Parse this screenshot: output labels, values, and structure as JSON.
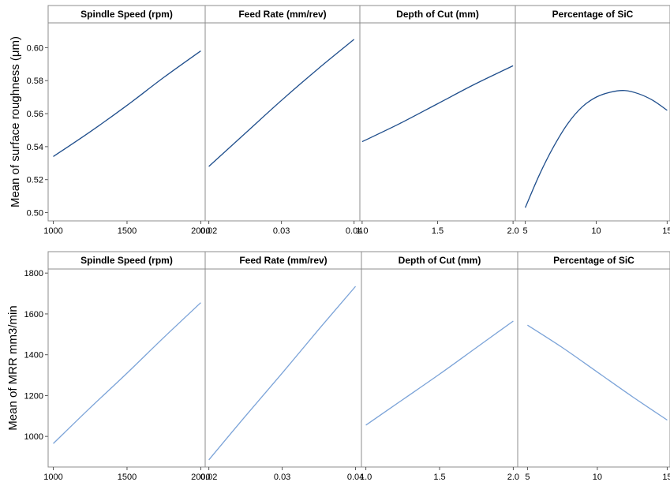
{
  "chart_data": [
    {
      "type": "line",
      "ylabel": "Mean of surface roughness (μm)",
      "ylim": [
        0.495,
        0.615
      ],
      "yticks": [
        0.5,
        0.52,
        0.54,
        0.56,
        0.58,
        0.6
      ],
      "ytick_labels": [
        "0.50",
        "0.52",
        "0.54",
        "0.56",
        "0.58",
        "0.60"
      ],
      "line_color": "#1f4e8c",
      "grid": false,
      "panels": [
        {
          "title": "Spindle Speed (rpm)",
          "xlim": [
            965,
            2030
          ],
          "xticks": [
            1000,
            1500,
            2000
          ],
          "xtick_labels": [
            "1000",
            "1500",
            "2000"
          ],
          "x": [
            1000,
            1250,
            1500,
            1750,
            2000
          ],
          "y": [
            0.534,
            0.549,
            0.565,
            0.582,
            0.598
          ]
        },
        {
          "title": "Feed Rate (mm/rev)",
          "xlim": [
            0.0195,
            0.0408
          ],
          "xticks": [
            0.02,
            0.03,
            0.04
          ],
          "xtick_labels": [
            "0.02",
            "0.03",
            "0.04"
          ],
          "x": [
            0.02,
            0.025,
            0.03,
            0.035,
            0.04
          ],
          "y": [
            0.528,
            0.548,
            0.568,
            0.587,
            0.605
          ]
        },
        {
          "title": "Depth of Cut (mm)",
          "xlim": [
            0.985,
            2.015
          ],
          "xticks": [
            1.0,
            1.5,
            2.0
          ],
          "xtick_labels": [
            "1.0",
            "1.5",
            "2.0"
          ],
          "x": [
            1.0,
            1.25,
            1.5,
            1.75,
            2.0
          ],
          "y": [
            0.543,
            0.554,
            0.566,
            0.578,
            0.589
          ]
        },
        {
          "title": "Percentage of SiC",
          "xlim": [
            4.3,
            15.2
          ],
          "xticks": [
            5,
            10,
            15
          ],
          "xtick_labels": [
            "5",
            "10",
            "15"
          ],
          "x": [
            5,
            6,
            7,
            8,
            9,
            10,
            11,
            12,
            13,
            14,
            15
          ],
          "y": [
            0.503,
            0.523,
            0.54,
            0.554,
            0.564,
            0.57,
            0.573,
            0.574,
            0.572,
            0.568,
            0.562
          ]
        }
      ]
    },
    {
      "type": "line",
      "ylabel": "Mean of MRR mm3/min",
      "ylim": [
        850,
        1820
      ],
      "yticks": [
        1000,
        1200,
        1400,
        1600,
        1800
      ],
      "ytick_labels": [
        "1000",
        "1200",
        "1400",
        "1600",
        "1800"
      ],
      "line_color": "#7ba3d8",
      "grid": false,
      "panels": [
        {
          "title": "Spindle Speed (rpm)",
          "xlim": [
            965,
            2030
          ],
          "xticks": [
            1000,
            1500,
            2000
          ],
          "xtick_labels": [
            "1000",
            "1500",
            "2000"
          ],
          "x": [
            1000,
            1250,
            1500,
            1750,
            2000
          ],
          "y": [
            965,
            1140,
            1310,
            1485,
            1655
          ]
        },
        {
          "title": "Feed Rate (mm/rev)",
          "xlim": [
            0.0195,
            0.0408
          ],
          "xticks": [
            0.02,
            0.03,
            0.04
          ],
          "xtick_labels": [
            "0.02",
            "0.03",
            "0.04"
          ],
          "x": [
            0.02,
            0.025,
            0.03,
            0.035,
            0.04
          ],
          "y": [
            885,
            1100,
            1310,
            1525,
            1735
          ]
        },
        {
          "title": "Depth of Cut (mm)",
          "xlim": [
            0.97,
            2.03
          ],
          "xticks": [
            1.0,
            1.5,
            2.0
          ],
          "xtick_labels": [
            "1.0",
            "1.5",
            "2.0"
          ],
          "x": [
            1.0,
            1.25,
            1.5,
            1.75,
            2.0
          ],
          "y": [
            1055,
            1180,
            1305,
            1435,
            1565
          ]
        },
        {
          "title": "Percentage of SiC",
          "xlim": [
            4.3,
            15.2
          ],
          "xticks": [
            5,
            10,
            15
          ],
          "xtick_labels": [
            "5",
            "10",
            "15"
          ],
          "x": [
            5,
            7.5,
            10,
            12.5,
            15
          ],
          "y": [
            1545,
            1435,
            1315,
            1195,
            1080
          ]
        }
      ]
    }
  ]
}
